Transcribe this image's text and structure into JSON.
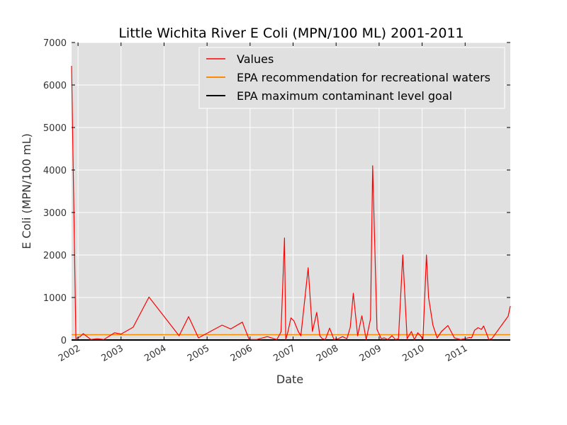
{
  "chart_data": {
    "type": "line",
    "title": "Little Wichita River E Coli (MPN/100 ML) 2001-2011",
    "xlabel": "Date",
    "ylabel": "E Coli (MPN/100 mL)",
    "ylim": [
      0,
      7000
    ],
    "yticks": [
      0,
      1000,
      2000,
      3000,
      4000,
      5000,
      6000,
      7000
    ],
    "xlim": [
      2001.85,
      2012.05
    ],
    "xticks": [
      {
        "label": "2002",
        "x": 2002
      },
      {
        "label": "2003",
        "x": 2003
      },
      {
        "label": "2004",
        "x": 2004
      },
      {
        "label": "2005",
        "x": 2005
      },
      {
        "label": "2006",
        "x": 2006
      },
      {
        "label": "2007",
        "x": 2007
      },
      {
        "label": "2008",
        "x": 2008
      },
      {
        "label": "2009",
        "x": 2009
      },
      {
        "label": "2010",
        "x": 2010
      },
      {
        "label": "2011",
        "x": 2011
      }
    ],
    "grid": true,
    "legend_position": "top-right",
    "series": [
      {
        "name": "Values",
        "color": "#ff0000",
        "x": [
          2001.85,
          2001.95,
          2002.05,
          2002.12,
          2002.3,
          2002.45,
          2002.6,
          2002.85,
          2003.0,
          2003.28,
          2003.65,
          2004.35,
          2004.57,
          2004.8,
          2005.35,
          2005.55,
          2005.82,
          2005.98,
          2006.15,
          2006.4,
          2006.62,
          2006.7,
          2006.72,
          2006.8,
          2006.83,
          2006.88,
          2006.95,
          2007.02,
          2007.12,
          2007.18,
          2007.35,
          2007.45,
          2007.55,
          2007.62,
          2007.68,
          2007.75,
          2007.85,
          2007.95,
          2008.05,
          2008.15,
          2008.25,
          2008.33,
          2008.4,
          2008.5,
          2008.6,
          2008.7,
          2008.8,
          2008.85,
          2008.95,
          2009.05,
          2009.12,
          2009.2,
          2009.3,
          2009.38,
          2009.45,
          2009.55,
          2009.65,
          2009.75,
          2009.82,
          2009.9,
          2010.02,
          2010.1,
          2010.15,
          2010.25,
          2010.35,
          2010.45,
          2010.6,
          2010.75,
          2010.9,
          2011.0,
          2011.1,
          2011.15,
          2011.22,
          2011.3,
          2011.38,
          2011.43,
          2011.55,
          2011.62,
          2012.0,
          2012.05
        ],
        "y": [
          6450,
          30,
          80,
          150,
          10,
          30,
          10,
          170,
          140,
          300,
          1010,
          100,
          550,
          50,
          350,
          260,
          420,
          10,
          10,
          80,
          10,
          150,
          200,
          2400,
          10,
          200,
          520,
          450,
          200,
          100,
          1700,
          200,
          650,
          100,
          30,
          10,
          280,
          10,
          30,
          80,
          30,
          300,
          1100,
          100,
          570,
          10,
          500,
          4100,
          250,
          30,
          50,
          10,
          100,
          10,
          30,
          2000,
          30,
          200,
          10,
          170,
          30,
          2000,
          1000,
          350,
          50,
          200,
          340,
          50,
          10,
          30,
          60,
          50,
          230,
          290,
          250,
          330,
          10,
          30,
          560,
          800
        ]
      },
      {
        "name": "EPA recommendation for recreational waters",
        "color": "#ff8c00",
        "constant": 126
      },
      {
        "name": "EPA maximum contaminant level goal",
        "color": "#000000",
        "constant": 0
      }
    ]
  }
}
